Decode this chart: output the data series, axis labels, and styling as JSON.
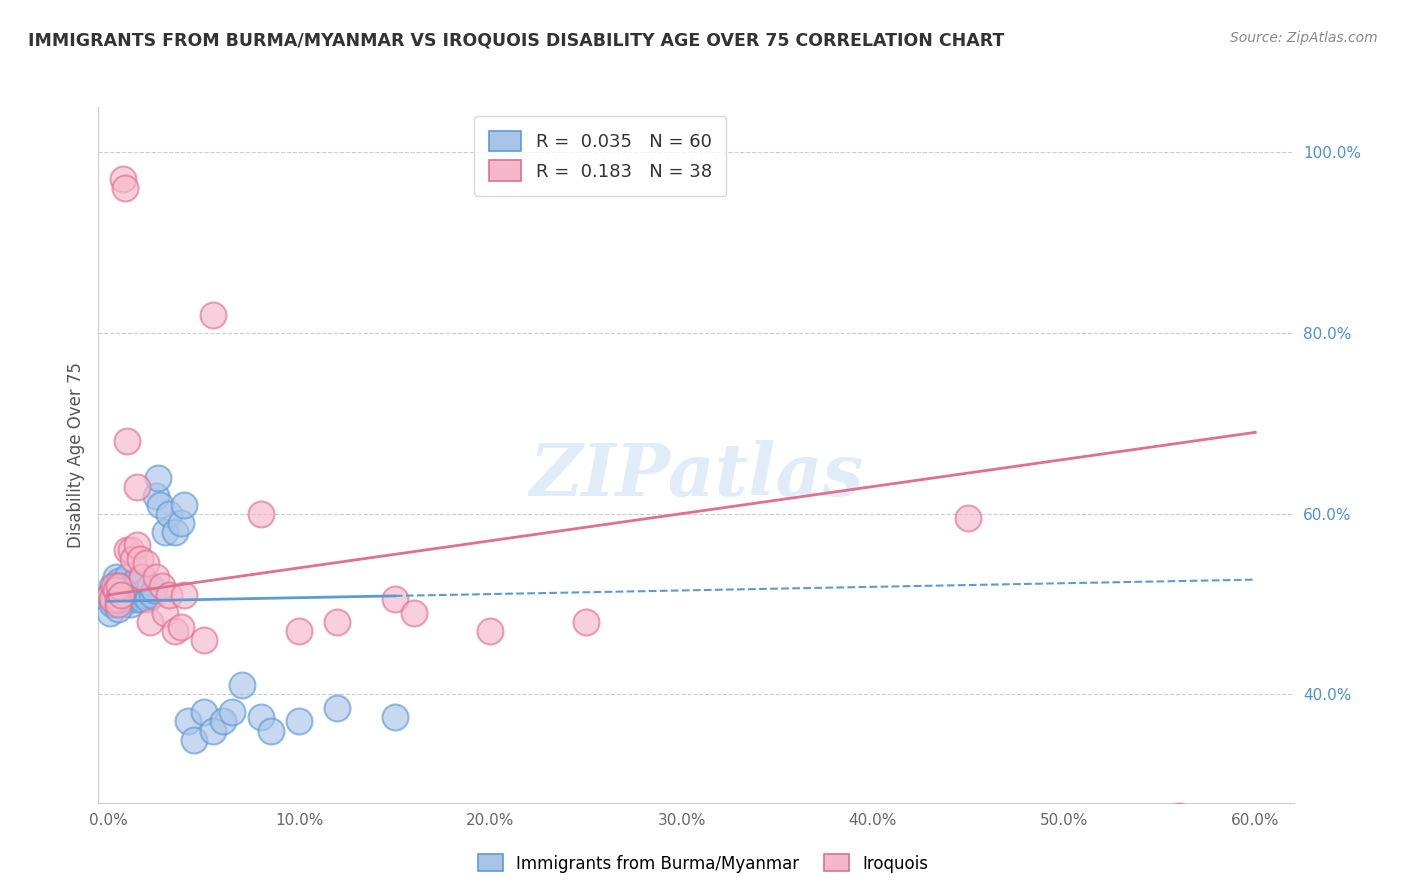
{
  "title": "IMMIGRANTS FROM BURMA/MYANMAR VS IROQUOIS DISABILITY AGE OVER 75 CORRELATION CHART",
  "source_text": "Source: ZipAtlas.com",
  "ylabel": "Disability Age Over 75",
  "legend_label_blue": "Immigrants from Burma/Myanmar",
  "legend_label_pink": "Iroquois",
  "R_blue": 0.035,
  "N_blue": 60,
  "R_pink": 0.183,
  "N_pink": 38,
  "xlim": [
    -0.005,
    0.62
  ],
  "ylim": [
    0.28,
    1.05
  ],
  "xtick_vals": [
    0.0,
    0.1,
    0.2,
    0.3,
    0.4,
    0.5,
    0.6
  ],
  "ytick_vals": [
    0.4,
    0.6,
    0.8,
    1.0
  ],
  "color_blue": "#aac4e8",
  "color_pink": "#f5b8cb",
  "color_blue_line": "#5b9bd5",
  "color_pink_line": "#e07090",
  "watermark": "ZIPatlas",
  "blue_scatter_x": [
    0.001,
    0.002,
    0.003,
    0.004,
    0.005,
    0.005,
    0.006,
    0.007,
    0.008,
    0.008,
    0.009,
    0.01,
    0.01,
    0.011,
    0.012,
    0.012,
    0.013,
    0.014,
    0.015,
    0.015,
    0.016,
    0.017,
    0.018,
    0.018,
    0.019,
    0.02,
    0.021,
    0.022,
    0.023,
    0.024,
    0.025,
    0.026,
    0.027,
    0.03,
    0.032,
    0.035,
    0.038,
    0.04,
    0.042,
    0.045,
    0.05,
    0.055,
    0.06,
    0.065,
    0.07,
    0.08,
    0.085,
    0.1,
    0.12,
    0.15,
    0.001,
    0.002,
    0.003,
    0.003,
    0.004,
    0.005,
    0.005,
    0.006,
    0.007,
    0.008
  ],
  "blue_scatter_y": [
    0.51,
    0.52,
    0.5,
    0.53,
    0.515,
    0.505,
    0.525,
    0.51,
    0.5,
    0.52,
    0.515,
    0.505,
    0.53,
    0.51,
    0.52,
    0.5,
    0.515,
    0.525,
    0.505,
    0.515,
    0.51,
    0.52,
    0.505,
    0.53,
    0.51,
    0.515,
    0.505,
    0.52,
    0.51,
    0.515,
    0.62,
    0.64,
    0.61,
    0.58,
    0.6,
    0.58,
    0.59,
    0.61,
    0.37,
    0.35,
    0.38,
    0.36,
    0.37,
    0.38,
    0.41,
    0.375,
    0.36,
    0.37,
    0.385,
    0.375,
    0.49,
    0.5,
    0.51,
    0.505,
    0.515,
    0.495,
    0.52,
    0.505,
    0.51,
    0.515
  ],
  "pink_scatter_x": [
    0.001,
    0.002,
    0.003,
    0.004,
    0.005,
    0.005,
    0.006,
    0.007,
    0.008,
    0.009,
    0.01,
    0.01,
    0.012,
    0.013,
    0.015,
    0.015,
    0.017,
    0.018,
    0.02,
    0.022,
    0.025,
    0.028,
    0.03,
    0.032,
    0.035,
    0.038,
    0.04,
    0.05,
    0.055,
    0.08,
    0.1,
    0.12,
    0.15,
    0.16,
    0.2,
    0.25,
    0.45,
    0.56
  ],
  "pink_scatter_y": [
    0.51,
    0.505,
    0.52,
    0.515,
    0.505,
    0.5,
    0.52,
    0.51,
    0.97,
    0.96,
    0.68,
    0.56,
    0.56,
    0.55,
    0.63,
    0.565,
    0.55,
    0.53,
    0.545,
    0.48,
    0.53,
    0.52,
    0.49,
    0.51,
    0.47,
    0.475,
    0.51,
    0.46,
    0.82,
    0.6,
    0.47,
    0.48,
    0.505,
    0.49,
    0.47,
    0.48,
    0.595,
    0.265
  ],
  "blue_trend_x": [
    0.0,
    0.6
  ],
  "blue_trend_y": [
    0.503,
    0.527
  ],
  "pink_trend_x": [
    0.0,
    0.6
  ],
  "pink_trend_y": [
    0.51,
    0.69
  ],
  "background_color": "#ffffff",
  "grid_color": "#cccccc"
}
